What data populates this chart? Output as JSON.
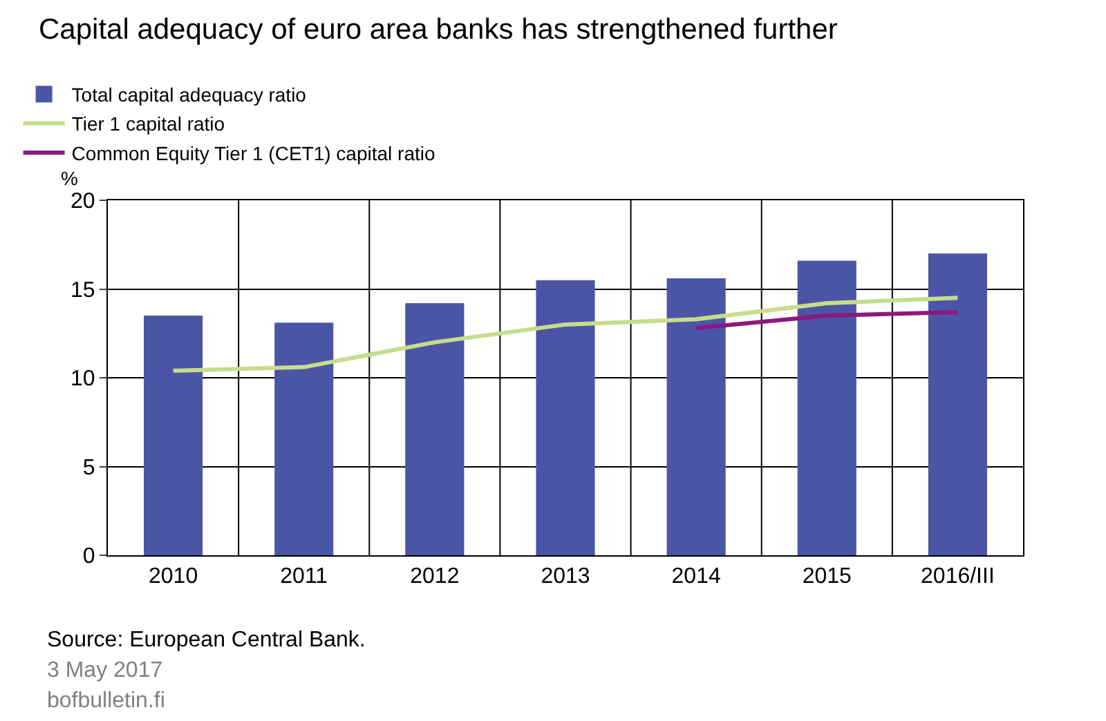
{
  "chart_data": {
    "type": "bar",
    "title": "Capital adequacy of euro area banks has strengthened further",
    "ylabel": "%",
    "categories": [
      "2010",
      "2011",
      "2012",
      "2013",
      "2014",
      "2015",
      "2016/III"
    ],
    "series": [
      {
        "name": "Total capital adequacy ratio",
        "color": "#4b55a5",
        "values": [
          13.5,
          13.1,
          14.2,
          15.5,
          15.6,
          16.6,
          17.0
        ]
      },
      {
        "name": "Tier 1 capital ratio",
        "type": "line",
        "color": "#c8dc8c",
        "values": [
          10.4,
          10.6,
          12.0,
          13.0,
          13.3,
          14.2,
          14.5
        ]
      },
      {
        "name": "Common Equity Tier 1 (CET1) capital ratio",
        "type": "line",
        "color": "#8b1a7e",
        "values": [
          null,
          null,
          null,
          null,
          12.8,
          13.5,
          13.7
        ]
      }
    ],
    "ylim": [
      0,
      20
    ],
    "yticks": [
      0,
      5,
      10,
      15,
      20
    ],
    "grid": true,
    "legend": "top left",
    "marker": "none",
    "line_style": "solid",
    "annotations": [
      "Source: European Central Bank.",
      "3 May 2017",
      "bofbulletin.fi"
    ]
  }
}
